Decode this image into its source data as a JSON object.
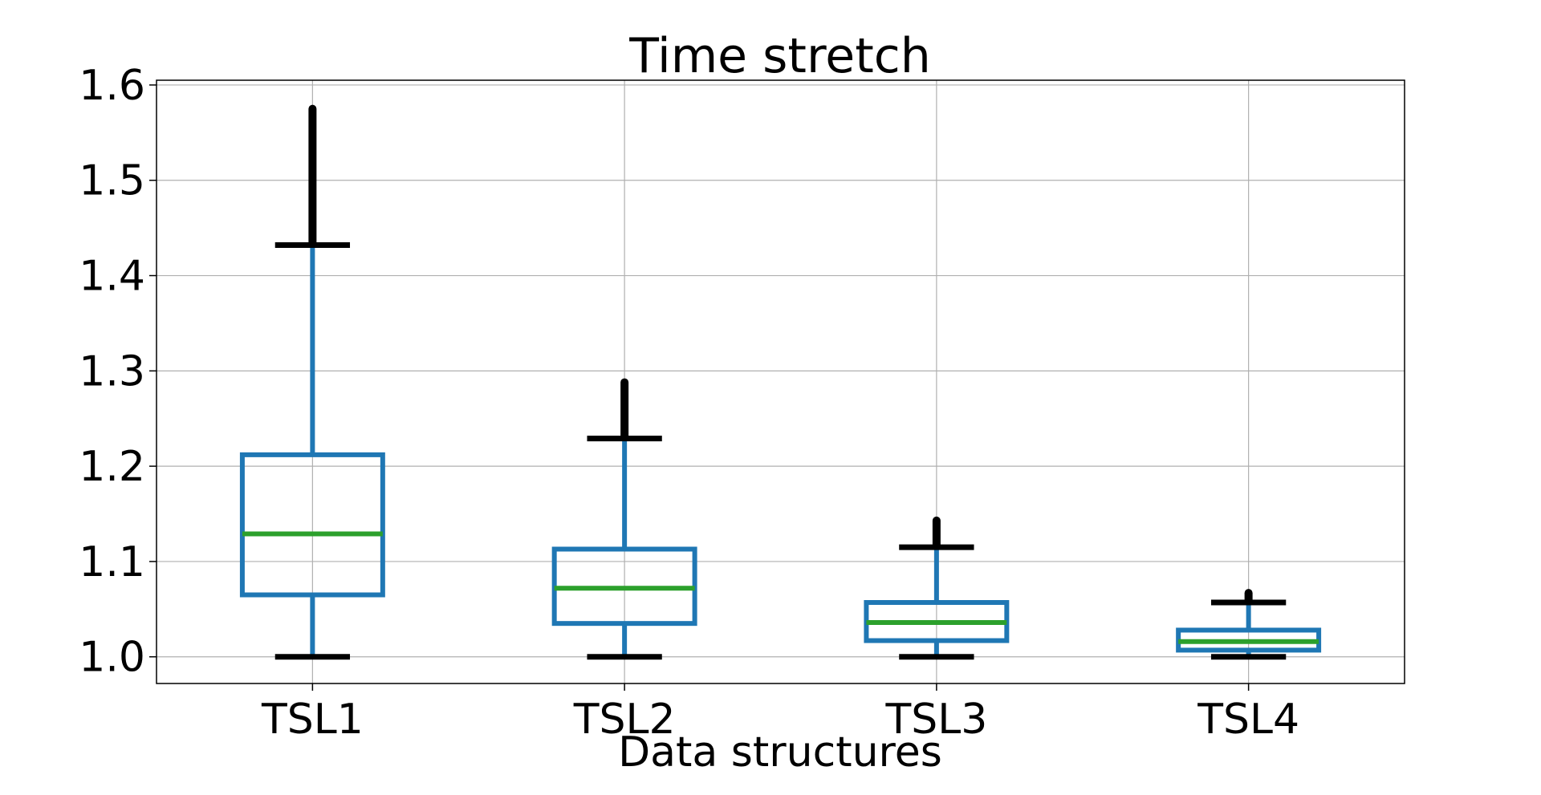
{
  "chart_data": {
    "type": "box",
    "title": "Time stretch",
    "xlabel": "Data structures",
    "ylabel": "",
    "ylim": [
      0.972,
      1.605
    ],
    "yticks": [
      1.0,
      1.1,
      1.2,
      1.3,
      1.4,
      1.5,
      1.6
    ],
    "ytick_labels": [
      "1.0",
      "1.1",
      "1.2",
      "1.3",
      "1.4",
      "1.5",
      "1.6"
    ],
    "grid": true,
    "categories": [
      "TSL1",
      "TSL2",
      "TSL3",
      "TSL4"
    ],
    "boxes": [
      {
        "name": "TSL1",
        "whisker_low": 1.0,
        "q1": 1.065,
        "median": 1.129,
        "q3": 1.212,
        "whisker_high": 1.432,
        "outlier_min": 1.435,
        "outlier_max": 1.575
      },
      {
        "name": "TSL2",
        "whisker_low": 1.0,
        "q1": 1.035,
        "median": 1.072,
        "q3": 1.113,
        "whisker_high": 1.229,
        "outlier_min": 1.232,
        "outlier_max": 1.288
      },
      {
        "name": "TSL3",
        "whisker_low": 1.0,
        "q1": 1.017,
        "median": 1.036,
        "q3": 1.057,
        "whisker_high": 1.115,
        "outlier_min": 1.117,
        "outlier_max": 1.143
      },
      {
        "name": "TSL4",
        "whisker_low": 1.0,
        "q1": 1.007,
        "median": 1.016,
        "q3": 1.028,
        "whisker_high": 1.057,
        "outlier_min": 1.059,
        "outlier_max": 1.067
      }
    ],
    "colors": {
      "box": "#1f77b4",
      "median": "#2ca02c",
      "whisker_cap": "#000000",
      "outlier": "#000000",
      "grid": "#b0b0b0"
    }
  }
}
